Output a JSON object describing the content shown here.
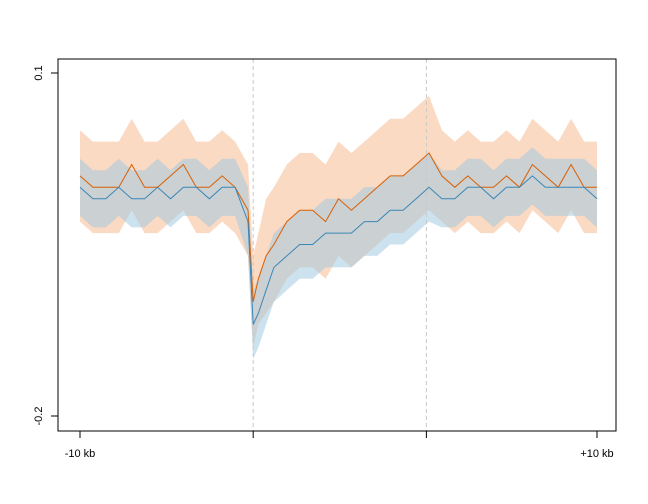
{
  "chart_data": {
    "type": "line",
    "title": "",
    "xlabel": "",
    "ylabel": "",
    "xlim": [
      -10,
      10
    ],
    "ylim": [
      -0.2,
      0.1
    ],
    "x_ticks": [
      {
        "value": -10,
        "label": "-10 kb"
      },
      {
        "value": -3.3,
        "label": ""
      },
      {
        "value": 3.4,
        "label": ""
      },
      {
        "value": 10,
        "label": "+10 kb"
      }
    ],
    "y_ticks": [
      {
        "value": 0.1,
        "label": "0.1"
      },
      {
        "value": -0.2,
        "label": "-0.2"
      }
    ],
    "vlines": [
      -3.3,
      3.4
    ],
    "grid": false,
    "legend": "none",
    "series": [
      {
        "color": "#d95f02",
        "band_color": "#f7b68a",
        "x": [
          -10,
          -9.5,
          -9,
          -8.5,
          -8,
          -7.5,
          -7,
          -6.5,
          -6,
          -5.5,
          -5,
          -4.5,
          -4,
          -3.5,
          -3.3,
          -3.1,
          -2.8,
          -2.5,
          -2,
          -1.5,
          -1,
          -0.5,
          0,
          0.5,
          1,
          1.5,
          2,
          2.5,
          3,
          3.5,
          4,
          4.5,
          5,
          5.5,
          6,
          6.5,
          7,
          7.5,
          8,
          8.5,
          9,
          9.5,
          10
        ],
        "y": [
          0.01,
          0.0,
          0.0,
          0.0,
          0.02,
          0.0,
          0.0,
          0.01,
          0.02,
          0.0,
          0.0,
          0.01,
          0.0,
          -0.02,
          -0.1,
          -0.08,
          -0.06,
          -0.05,
          -0.03,
          -0.02,
          -0.02,
          -0.03,
          -0.01,
          -0.02,
          -0.01,
          0.0,
          0.01,
          0.01,
          0.02,
          0.03,
          0.01,
          0.0,
          0.01,
          0.0,
          0.0,
          0.01,
          0.0,
          0.02,
          0.01,
          0.0,
          0.02,
          0.0,
          0.0
        ],
        "band": [
          0.04,
          0.04,
          0.04,
          0.04,
          0.04,
          0.04,
          0.04,
          0.04,
          0.04,
          0.04,
          0.04,
          0.04,
          0.04,
          0.04,
          0.04,
          0.04,
          0.05,
          0.05,
          0.05,
          0.05,
          0.05,
          0.05,
          0.05,
          0.05,
          0.05,
          0.05,
          0.05,
          0.05,
          0.05,
          0.05,
          0.04,
          0.04,
          0.04,
          0.04,
          0.04,
          0.04,
          0.04,
          0.04,
          0.04,
          0.04,
          0.04,
          0.04,
          0.04
        ]
      },
      {
        "color": "#3a87b8",
        "band_color": "#9cc6e0",
        "x": [
          -10,
          -9.5,
          -9,
          -8.5,
          -8,
          -7.5,
          -7,
          -6.5,
          -6,
          -5.5,
          -5,
          -4.5,
          -4,
          -3.5,
          -3.3,
          -3.1,
          -2.8,
          -2.5,
          -2,
          -1.5,
          -1,
          -0.5,
          0,
          0.5,
          1,
          1.5,
          2,
          2.5,
          3,
          3.5,
          4,
          4.5,
          5,
          5.5,
          6,
          6.5,
          7,
          7.5,
          8,
          8.5,
          9,
          9.5,
          10
        ],
        "y": [
          0.0,
          -0.01,
          -0.01,
          0.0,
          -0.01,
          -0.01,
          0.0,
          -0.01,
          0.0,
          0.0,
          -0.01,
          0.0,
          0.0,
          -0.03,
          -0.12,
          -0.11,
          -0.09,
          -0.07,
          -0.06,
          -0.05,
          -0.05,
          -0.04,
          -0.04,
          -0.04,
          -0.03,
          -0.03,
          -0.02,
          -0.02,
          -0.01,
          0.0,
          -0.01,
          -0.01,
          0.0,
          0.0,
          -0.01,
          0.0,
          0.0,
          0.01,
          0.0,
          0.0,
          0.0,
          0.0,
          -0.01
        ],
        "band": [
          0.025,
          0.025,
          0.025,
          0.025,
          0.025,
          0.025,
          0.025,
          0.025,
          0.025,
          0.025,
          0.025,
          0.025,
          0.025,
          0.03,
          0.03,
          0.03,
          0.03,
          0.03,
          0.03,
          0.03,
          0.03,
          0.03,
          0.03,
          0.03,
          0.03,
          0.03,
          0.03,
          0.03,
          0.03,
          0.03,
          0.025,
          0.025,
          0.025,
          0.025,
          0.025,
          0.025,
          0.025,
          0.025,
          0.025,
          0.025,
          0.025,
          0.025,
          0.025
        ]
      }
    ]
  }
}
